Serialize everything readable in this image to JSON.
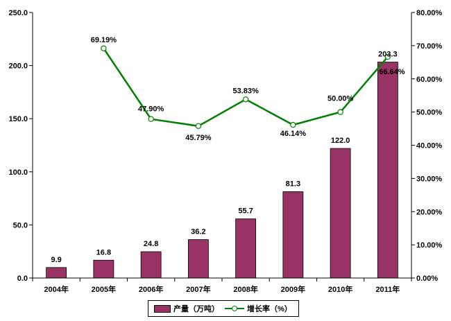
{
  "chart_data": {
    "type": "bar",
    "categories": [
      "2004年",
      "2005年",
      "2006年",
      "2007年",
      "2008年",
      "2009年",
      "2010年",
      "2011年"
    ],
    "series": [
      {
        "name": "产量（万吨）",
        "type": "bar",
        "axis": "left",
        "values": [
          9.9,
          16.8,
          24.8,
          36.2,
          55.7,
          81.3,
          122.0,
          203.3
        ],
        "labels": [
          "9.9",
          "16.8",
          "24.8",
          "36.2",
          "55.7",
          "81.3",
          "122.0",
          "203.3"
        ],
        "color": "#993366"
      },
      {
        "name": "增长率（%）",
        "type": "line",
        "axis": "right",
        "values": [
          null,
          69.19,
          47.9,
          45.79,
          53.83,
          46.14,
          50.0,
          66.64
        ],
        "labels": [
          null,
          "69.19%",
          "47.90%",
          "45.79%",
          "53.83%",
          "46.14%",
          "50.00%",
          "66.64%"
        ],
        "color": "#008000"
      }
    ],
    "y_left": {
      "ylim": [
        0,
        250
      ],
      "ticks": [
        "0.0",
        "50.0",
        "100.0",
        "150.0",
        "200.0",
        "250.0"
      ]
    },
    "y_right": {
      "ylim": [
        0,
        80
      ],
      "ticks": [
        "0.00%",
        "10.00%",
        "20.00%",
        "30.00%",
        "40.00%",
        "50.00%",
        "60.00%",
        "70.00%",
        "80.00%"
      ]
    },
    "grid": false,
    "legend": "bottom"
  }
}
